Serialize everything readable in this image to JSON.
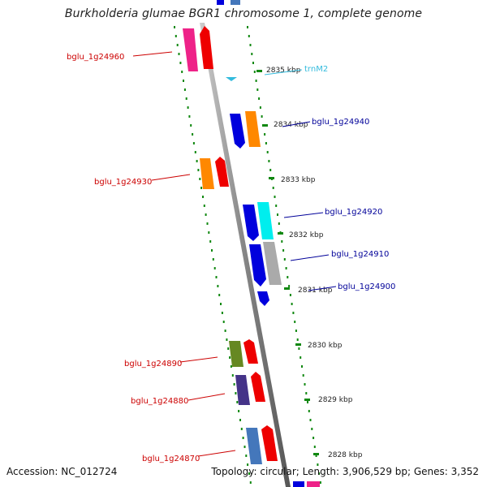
{
  "map": {
    "title": "Burkholderia glumae BGR1 chromosome 1, complete genome",
    "accession_text": "Accession: NC_012724",
    "summary_text": "Topology: circular; Length: 3,906,529 bp; Genes: 3,352"
  },
  "kbp_labels": [
    "2835 kbp",
    "2834 kbp",
    "2833 kbp",
    "2832 kbp",
    "2831 kbp",
    "2830 kbp",
    "2829 kbp",
    "2828 kbp"
  ],
  "trna": {
    "name": "trnM2",
    "color": "#33bbdd"
  },
  "left_genes": [
    {
      "name": "bglu_1g24960",
      "colors": [
        "#ee2288",
        "#ee0000"
      ]
    },
    {
      "name": "bglu_1g24930",
      "colors": [
        "#ff8800",
        "#ee0000"
      ]
    },
    {
      "name": "bglu_1g24890",
      "colors": [
        "#668822",
        "#ee0000"
      ]
    },
    {
      "name": "bglu_1g24880",
      "colors": [
        "#443388",
        "#ee0000"
      ]
    },
    {
      "name": "bglu_1g24870",
      "colors": [
        "#4477bb",
        "#ee0000"
      ]
    }
  ],
  "right_genes": [
    {
      "name": "bglu_1g24940",
      "colors": [
        "#0000dd",
        "#ff8800"
      ]
    },
    {
      "name": "bglu_1g24920",
      "colors": [
        "#0000dd",
        "#00eeee"
      ]
    },
    {
      "name": "bglu_1g24910",
      "colors": [
        "#0000dd",
        "#aaaaaa"
      ]
    },
    {
      "name": "bglu_1g24900",
      "colors": [
        "#0000dd"
      ]
    }
  ],
  "colors": {
    "forward_label": "#cc0000",
    "reverse_label": "#000099",
    "ticks": "#118811",
    "backbone": "#888888"
  }
}
